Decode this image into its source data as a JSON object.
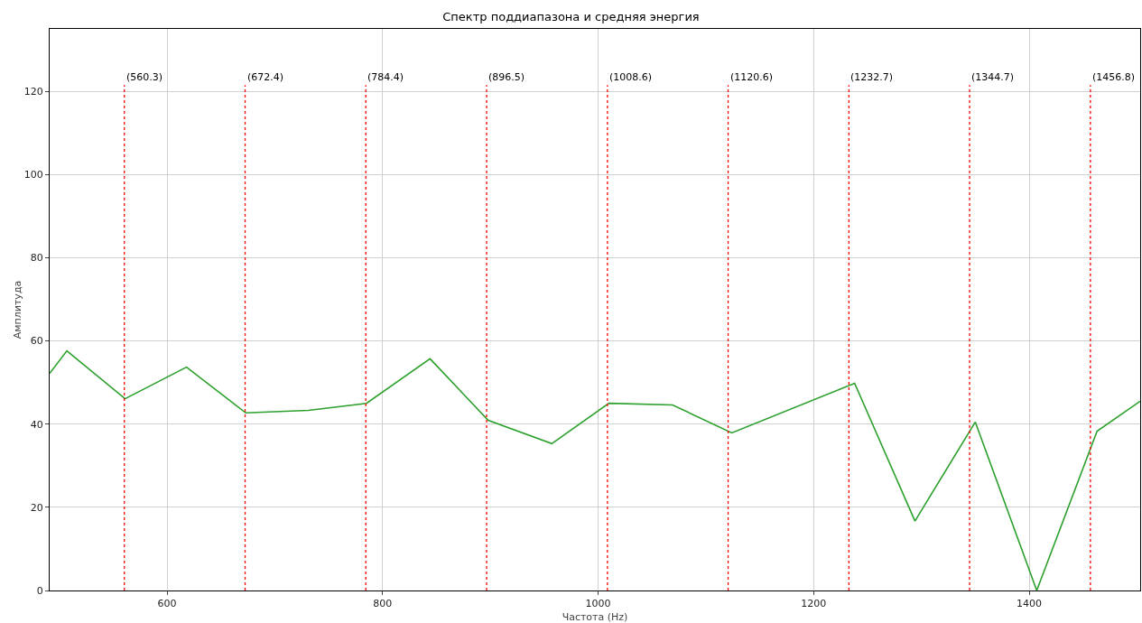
{
  "chart_data": {
    "type": "line",
    "title": "Спектр поддиапазона и средняя энергия",
    "xlabel": "Частота (Hz)",
    "ylabel": "Амплитуда",
    "x": [
      491,
      507,
      561,
      618,
      673,
      731,
      785,
      844,
      898,
      957,
      1010,
      1069,
      1124,
      1238,
      1294,
      1350,
      1407,
      1463,
      1503
    ],
    "series": [
      {
        "color": "#2ca02c",
        "values": [
          52.2,
          57.6,
          46.1,
          53.7,
          42.7,
          43.3,
          45.0,
          55.7,
          40.9,
          35.3,
          45.0,
          44.6,
          37.9,
          49.8,
          16.7,
          40.5,
          0,
          38.3,
          45.5
        ]
      }
    ],
    "xlim": [
      491,
      1503
    ],
    "xticks": [
      600,
      800,
      1000,
      1200,
      1400
    ],
    "ylim": [
      0,
      135
    ],
    "yticks": [
      0,
      20,
      40,
      60,
      80,
      100,
      120
    ],
    "grid": true,
    "marker": "none",
    "line_style": "solid",
    "ref_lines": [
      {
        "axis": "x",
        "value": 560.3,
        "label": "(560.3)",
        "color": "#ff0000",
        "line_style": "dotted"
      },
      {
        "axis": "x",
        "value": 672.4,
        "label": "(672.4)",
        "color": "#ff0000",
        "line_style": "dotted"
      },
      {
        "axis": "x",
        "value": 784.4,
        "label": "(784.4)",
        "color": "#ff0000",
        "line_style": "dotted"
      },
      {
        "axis": "x",
        "value": 896.5,
        "label": "(896.5)",
        "color": "#ff0000",
        "line_style": "dotted"
      },
      {
        "axis": "x",
        "value": 1008.6,
        "label": "(1008.6)",
        "color": "#ff0000",
        "line_style": "dotted"
      },
      {
        "axis": "x",
        "value": 1120.6,
        "label": "(1120.6)",
        "color": "#ff0000",
        "line_style": "dotted"
      },
      {
        "axis": "x",
        "value": 1232.7,
        "label": "(1232.7)",
        "color": "#ff0000",
        "line_style": "dotted"
      },
      {
        "axis": "x",
        "value": 1344.7,
        "label": "(1344.7)",
        "color": "#ff0000",
        "line_style": "dotted"
      },
      {
        "axis": "x",
        "value": 1456.8,
        "label": "(1456.8)",
        "color": "#ff0000",
        "line_style": "dotted"
      }
    ]
  }
}
